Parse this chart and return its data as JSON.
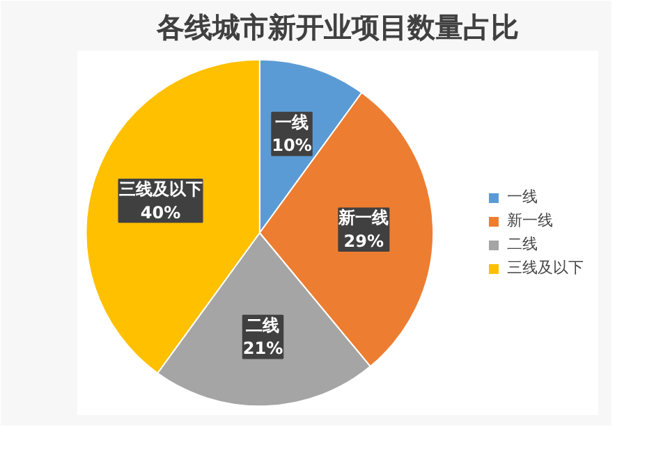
{
  "chart_data": {
    "type": "pie",
    "title": "各线城市新开业项目数量占比",
    "categories": [
      "一线",
      "新一线",
      "二线",
      "三线及以下"
    ],
    "values": [
      10,
      29,
      21,
      40
    ],
    "colors": [
      "#5b9bd5",
      "#ed7d31",
      "#a5a5a5",
      "#ffc000"
    ],
    "value_labels": [
      "10%",
      "29%",
      "21%",
      "40%"
    ],
    "legend": "right"
  }
}
